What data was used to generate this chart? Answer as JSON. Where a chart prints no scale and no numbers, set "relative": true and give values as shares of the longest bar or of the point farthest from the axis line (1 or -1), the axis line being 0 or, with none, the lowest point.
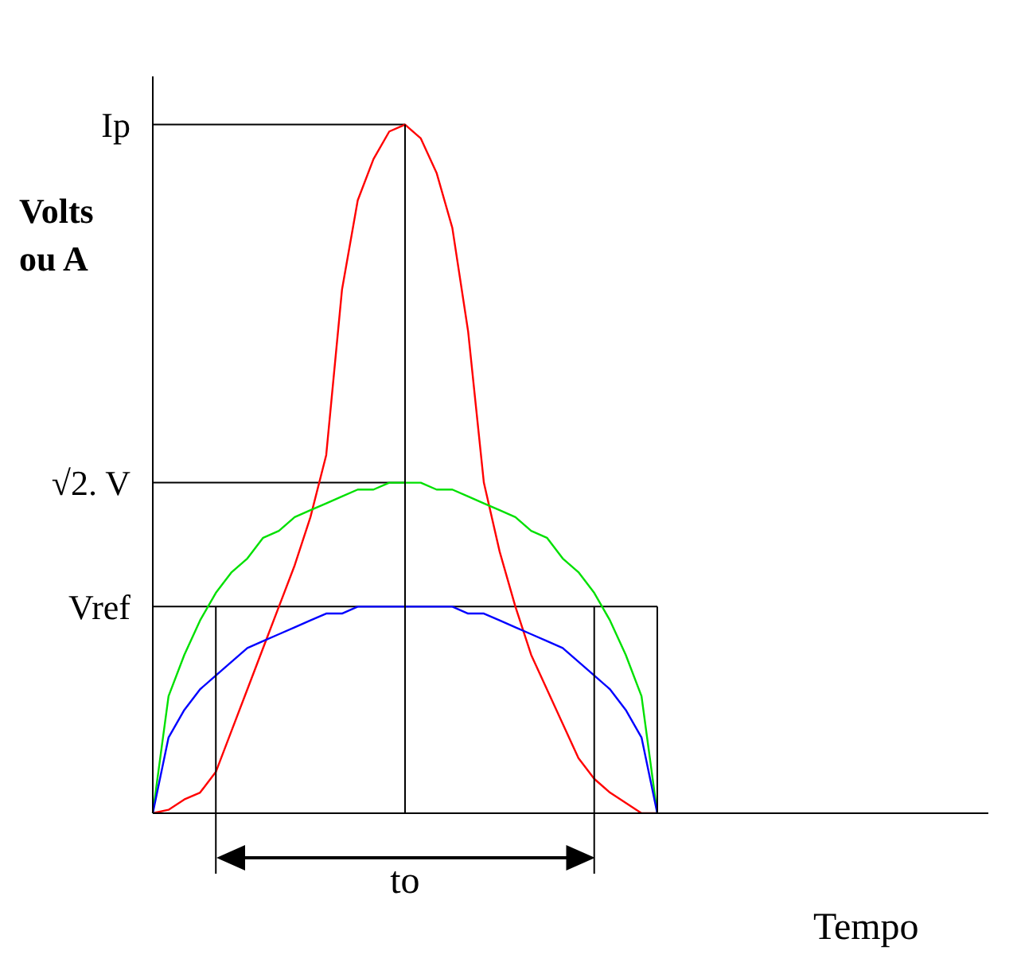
{
  "chart_data": {
    "type": "line",
    "relative": true,
    "xlabel": "Tempo",
    "ylabel": "Volts ou A",
    "categories": [
      null,
      null,
      null,
      null,
      null,
      null,
      null,
      null,
      null,
      null,
      null,
      null,
      null,
      null,
      null,
      null,
      null,
      null,
      null,
      null,
      null,
      null,
      null,
      null,
      null,
      null,
      null,
      null,
      null,
      null,
      null,
      null,
      null,
      null,
      null,
      null,
      null,
      null,
      null,
      null,
      null,
      null,
      null,
      null,
      null,
      null,
      null,
      null,
      null,
      null,
      null,
      null,
      null,
      null
    ],
    "series": [
      {
        "color": "#ff0000",
        "values": [
          0,
          0.005,
          0.02,
          0.03,
          0.06,
          0.12,
          0.18,
          0.24,
          0.3,
          0.36,
          0.43,
          0.52,
          0.76,
          0.89,
          0.95,
          0.99,
          1,
          0.98,
          0.93,
          0.85,
          0.7,
          0.48,
          0.38,
          0.3,
          0.23,
          0.18,
          0.13,
          0.08,
          0.05,
          0.03,
          0.015,
          0,
          0,
          null,
          null,
          null,
          null,
          null,
          null,
          null,
          null,
          null,
          null,
          null,
          null,
          null,
          null,
          null,
          null,
          null,
          null,
          null,
          null,
          null
        ]
      },
      {
        "color": "#00e000",
        "values": [
          0,
          0.17,
          0.23,
          0.28,
          0.32,
          0.35,
          0.37,
          0.4,
          0.41,
          0.43,
          0.44,
          0.45,
          0.46,
          0.47,
          0.47,
          0.48,
          0.48,
          0.48,
          0.47,
          0.47,
          0.46,
          0.45,
          0.44,
          0.43,
          0.41,
          0.4,
          0.37,
          0.35,
          0.32,
          0.28,
          0.23,
          0.17,
          0,
          null,
          null,
          null,
          null,
          null,
          null,
          null,
          null,
          null,
          null,
          null,
          null,
          null,
          null,
          null,
          null,
          null,
          null,
          null,
          null,
          null
        ]
      },
      {
        "color": "#0000ff",
        "values": [
          0,
          0.11,
          0.15,
          0.18,
          0.2,
          0.22,
          0.24,
          0.25,
          0.26,
          0.27,
          0.28,
          0.29,
          0.29,
          0.3,
          0.3,
          0.3,
          0.3,
          0.3,
          0.3,
          0.3,
          0.29,
          0.29,
          0.28,
          0.27,
          0.26,
          0.25,
          0.24,
          0.22,
          0.2,
          0.18,
          0.15,
          0.11,
          0,
          null,
          null,
          null,
          null,
          null,
          null,
          null,
          null,
          null,
          null,
          null,
          null,
          null,
          null,
          null,
          null,
          null,
          null,
          null,
          null,
          null
        ]
      }
    ],
    "ref_lines": [
      {
        "axis": "y",
        "value": 1,
        "label": "Ip",
        "color": "#000000"
      },
      {
        "axis": "y",
        "value": 0.48,
        "label": "√2. V",
        "color": "#000000"
      },
      {
        "axis": "y",
        "value": 0.3,
        "label": "Vref",
        "color": "#000000"
      }
    ],
    "annotations": [
      "to"
    ]
  }
}
